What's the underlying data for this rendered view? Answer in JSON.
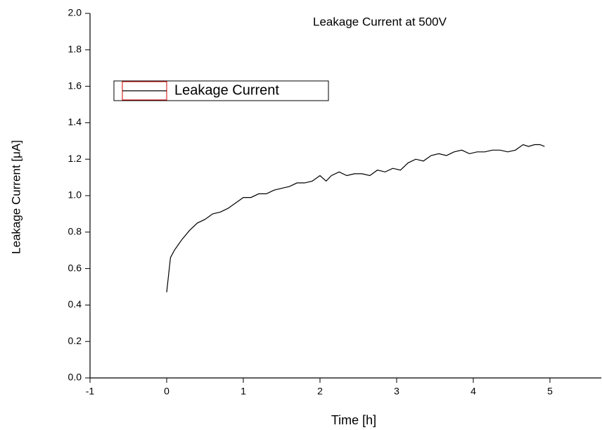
{
  "chart_data": {
    "type": "line",
    "title": "Leakage Current at 500V",
    "x_label": "Time [h]",
    "y_label": "Leakage Current [μA]",
    "x": [
      0,
      0.05,
      0.1,
      0.2,
      0.3,
      0.4,
      0.5,
      0.6,
      0.7,
      0.8,
      0.9,
      1.0,
      1.1,
      1.2,
      1.3,
      1.4,
      1.5,
      1.6,
      1.7,
      1.8,
      1.9,
      2.0,
      2.08,
      2.15,
      2.25,
      2.35,
      2.45,
      2.55,
      2.65,
      2.75,
      2.85,
      2.95,
      3.05,
      3.15,
      3.25,
      3.35,
      3.45,
      3.55,
      3.65,
      3.75,
      3.85,
      3.95,
      4.05,
      4.15,
      4.25,
      4.35,
      4.45,
      4.55,
      4.65,
      4.72,
      4.8,
      4.87,
      4.93
    ],
    "series": [
      {
        "name": "Leakage Current",
        "color": "#000000",
        "values": [
          0.47,
          0.66,
          0.7,
          0.76,
          0.81,
          0.85,
          0.87,
          0.9,
          0.91,
          0.93,
          0.96,
          0.99,
          0.99,
          1.01,
          1.01,
          1.03,
          1.04,
          1.05,
          1.07,
          1.07,
          1.08,
          1.11,
          1.08,
          1.11,
          1.13,
          1.11,
          1.12,
          1.12,
          1.11,
          1.14,
          1.13,
          1.15,
          1.14,
          1.18,
          1.2,
          1.19,
          1.22,
          1.23,
          1.22,
          1.24,
          1.25,
          1.23,
          1.24,
          1.24,
          1.25,
          1.25,
          1.24,
          1.25,
          1.28,
          1.27,
          1.28,
          1.28,
          1.27
        ]
      }
    ],
    "xlim": [
      -1,
      5.67
    ],
    "ylim": [
      0,
      2.0
    ],
    "xticks": [
      -1,
      0,
      1,
      2,
      3,
      4,
      5
    ],
    "yticks": [
      {
        "value": 0,
        "label": "0.0"
      },
      0.2,
      0.4,
      0.6,
      0.8,
      {
        "value": 1,
        "label": "1.0"
      },
      1.2,
      1.4,
      1.6,
      1.8,
      {
        "value": 2,
        "label": "2.0"
      }
    ],
    "legend": "upper-left"
  }
}
